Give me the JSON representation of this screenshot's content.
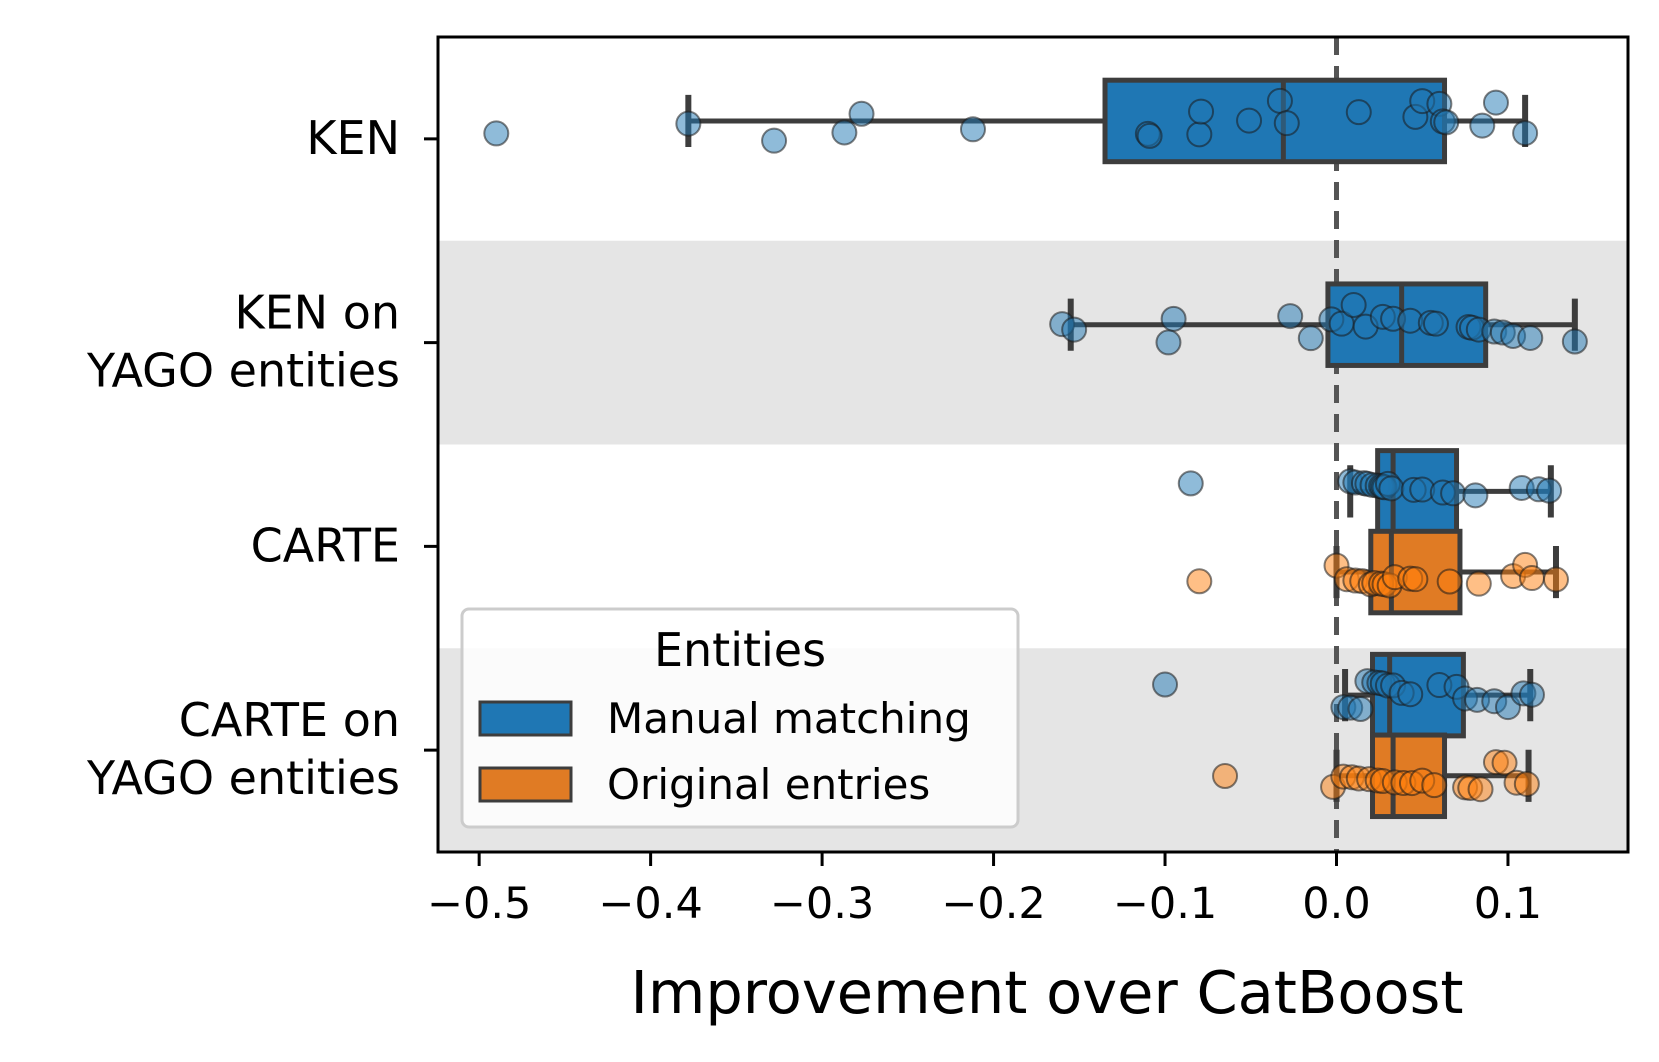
{
  "chart_data": {
    "type": "box",
    "orientation": "horizontal",
    "xlabel": "Improvement over CatBoost",
    "xlim": [
      -0.524,
      0.17
    ],
    "xticks": [
      -0.5,
      -0.4,
      -0.3,
      -0.2,
      -0.1,
      0.0,
      0.1
    ],
    "xtick_labels": [
      "−0.5",
      "−0.4",
      "−0.3",
      "−0.2",
      "−0.1",
      "0.0",
      "0.1"
    ],
    "reference_line": {
      "x": 0.0,
      "style": "dashed"
    },
    "categories": [
      {
        "label": [
          "KEN"
        ],
        "shaded": false
      },
      {
        "label": [
          "KEN on",
          "YAGO entities"
        ],
        "shaded": true
      },
      {
        "label": [
          "CARTE"
        ],
        "shaded": false
      },
      {
        "label": [
          "CARTE on",
          "YAGO entities"
        ],
        "shaded": true
      }
    ],
    "legend": {
      "title": "Entities",
      "position": "lower-left",
      "entries": [
        {
          "label": "Manual matching",
          "color": "#1f77b4"
        },
        {
          "label": "Original entries",
          "color": "#ff7f0e"
        }
      ]
    },
    "series": [
      {
        "name": "Manual matching",
        "color": "#1f77b4",
        "boxes": [
          {
            "category": 0,
            "whisker_low": -0.378,
            "q1": -0.135,
            "median": -0.031,
            "q3": 0.063,
            "whisker_high": 0.11,
            "points": [
              -0.49,
              -0.378,
              -0.328,
              -0.287,
              -0.277,
              -0.212,
              -0.11,
              -0.109,
              -0.08,
              -0.079,
              -0.051,
              -0.033,
              -0.029,
              0.013,
              0.046,
              0.05,
              0.06,
              0.062,
              0.064,
              0.085,
              0.093,
              0.11
            ]
          },
          {
            "category": 1,
            "whisker_low": -0.155,
            "q1": -0.005,
            "median": 0.038,
            "q3": 0.087,
            "whisker_high": 0.139,
            "points": [
              -0.16,
              -0.153,
              -0.095,
              -0.098,
              -0.027,
              -0.015,
              -0.003,
              0.003,
              0.01,
              0.017,
              0.027,
              0.033,
              0.043,
              0.055,
              0.058,
              0.077,
              0.079,
              0.083,
              0.092,
              0.097,
              0.103,
              0.113,
              0.139
            ]
          },
          {
            "category": 2,
            "whisker_low": 0.008,
            "q1": 0.024,
            "median": 0.033,
            "q3": 0.07,
            "whisker_high": 0.125,
            "points": [
              -0.085,
              0.008,
              0.011,
              0.016,
              0.018,
              0.021,
              0.024,
              0.026,
              0.027,
              0.028,
              0.03,
              0.032,
              0.045,
              0.05,
              0.062,
              0.068,
              0.081,
              0.108,
              0.118,
              0.124
            ]
          },
          {
            "category": 3,
            "whisker_low": 0.005,
            "q1": 0.021,
            "median": 0.031,
            "q3": 0.074,
            "whisker_high": 0.113,
            "points": [
              -0.1,
              0.004,
              0.008,
              0.014,
              0.018,
              0.022,
              0.025,
              0.027,
              0.03,
              0.033,
              0.038,
              0.043,
              0.06,
              0.07,
              0.075,
              0.082,
              0.092,
              0.1,
              0.109,
              0.114
            ]
          }
        ]
      },
      {
        "name": "Original entries",
        "color": "#ff7f0e",
        "boxes": [
          {
            "category": 2,
            "whisker_low": 0.0,
            "q1": 0.02,
            "median": 0.032,
            "q3": 0.072,
            "whisker_high": 0.128,
            "points": [
              -0.08,
              0.0,
              0.006,
              0.011,
              0.015,
              0.02,
              0.022,
              0.026,
              0.028,
              0.031,
              0.034,
              0.043,
              0.046,
              0.066,
              0.083,
              0.103,
              0.11,
              0.114,
              0.128
            ]
          },
          {
            "category": 3,
            "whisker_low": 0.0,
            "q1": 0.021,
            "median": 0.033,
            "q3": 0.063,
            "whisker_high": 0.112,
            "points": [
              -0.065,
              -0.002,
              0.004,
              0.009,
              0.013,
              0.019,
              0.024,
              0.027,
              0.034,
              0.039,
              0.044,
              0.05,
              0.057,
              0.075,
              0.078,
              0.084,
              0.093,
              0.098,
              0.105,
              0.111
            ]
          }
        ]
      }
    ]
  }
}
